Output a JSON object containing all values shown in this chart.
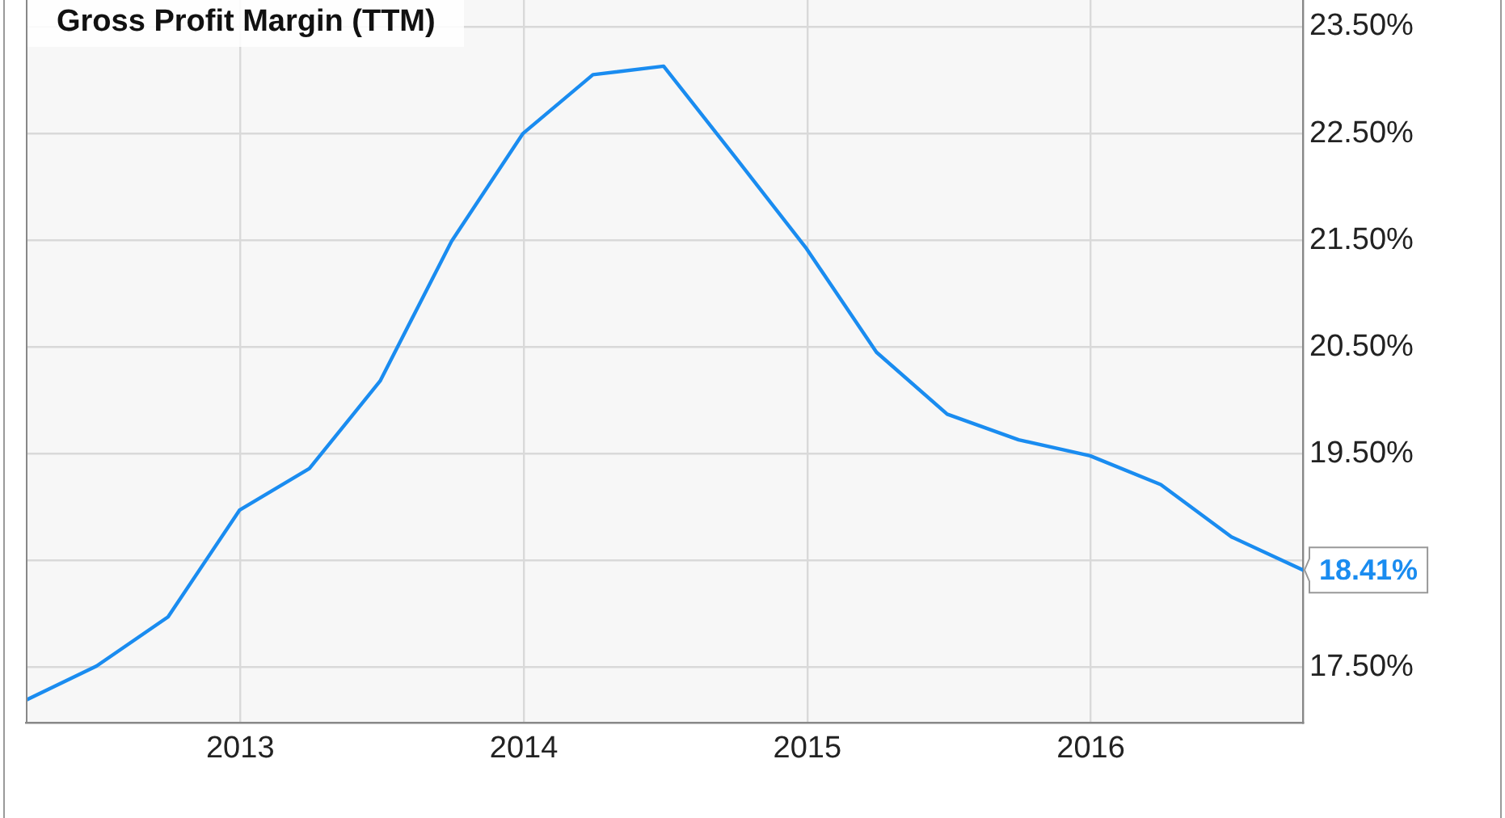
{
  "chart_data": {
    "type": "line",
    "title": "Gross Profit Margin (TTM)",
    "x": [
      "2012-03-31",
      "2012-06-30",
      "2012-09-30",
      "2012-12-31",
      "2013-03-31",
      "2013-06-30",
      "2013-09-30",
      "2013-12-31",
      "2014-03-31",
      "2014-06-30",
      "2014-09-30",
      "2014-12-31",
      "2015-03-31",
      "2015-06-30",
      "2015-09-30",
      "2015-12-31",
      "2016-03-31",
      "2016-06-30",
      "2016-09-30"
    ],
    "series": [
      {
        "color": "#1a8cf0",
        "values": [
          17.19,
          17.51,
          17.97,
          18.97,
          19.36,
          20.18,
          21.49,
          22.5,
          23.05,
          23.13,
          22.28,
          21.42,
          20.45,
          19.87,
          19.63,
          19.48,
          19.21,
          18.72,
          18.41
        ],
        "value_labels": [
          null,
          null,
          null,
          null,
          null,
          null,
          null,
          null,
          null,
          null,
          null,
          null,
          null,
          null,
          null,
          null,
          null,
          null,
          "18.41%"
        ]
      }
    ],
    "xlim": [
      "2012-03-31",
      "2016-09-30"
    ],
    "xticks": [
      "2013",
      "2014",
      "2015",
      "2016"
    ],
    "ylim": [
      16.98,
      23.75
    ],
    "yticks": [
      {
        "value": 17.5,
        "label": "17.50%"
      },
      {
        "value": 18.5,
        "label": null
      },
      {
        "value": 19.5,
        "label": "19.50%"
      },
      {
        "value": 20.5,
        "label": "20.50%"
      },
      {
        "value": 21.5,
        "label": "21.50%"
      },
      {
        "value": 22.5,
        "label": "22.50%"
      },
      {
        "value": 23.5,
        "label": "23.50%"
      }
    ],
    "grid": true,
    "legend": false,
    "marker": "none",
    "line_style": "solid"
  }
}
